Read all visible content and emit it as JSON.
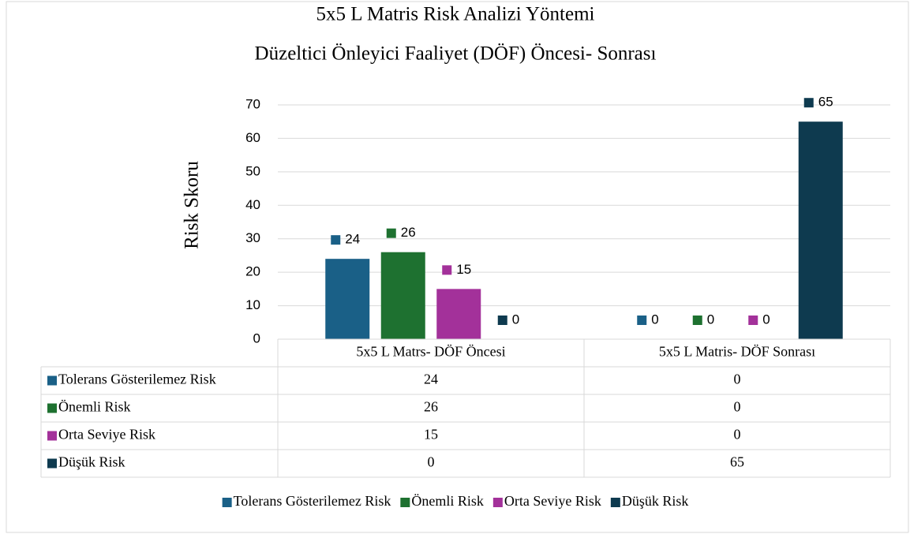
{
  "chart_data": {
    "type": "bar",
    "title": "5x5 L Matris Risk Analizi Yöntemi",
    "subtitle": "Düzeltici Önleyici Faaliyet (DÖF) Öncesi- Sonrası",
    "y_label": "Risk Skoru",
    "categories": [
      "5x5 L Matrs- DÖF Öncesi",
      "5x5 L Matris- DÖF Sonrası"
    ],
    "series": [
      {
        "name": "Tolerans Gösterilemez Risk",
        "color": "#1a6087",
        "values": [
          24,
          0
        ]
      },
      {
        "name": "Önemli Risk",
        "color": "#1e7130",
        "values": [
          26,
          0
        ]
      },
      {
        "name": "Orta Seviye Risk",
        "color": "#a3319a",
        "values": [
          15,
          0
        ]
      },
      {
        "name": "Düşük Risk",
        "color": "#0e3a4f",
        "values": [
          0,
          65
        ]
      }
    ],
    "ylim": [
      0,
      70
    ],
    "yticks": [
      0,
      10,
      20,
      30,
      40,
      50,
      60,
      70
    ],
    "grid": true,
    "legend": "bottom",
    "data_table": true
  }
}
